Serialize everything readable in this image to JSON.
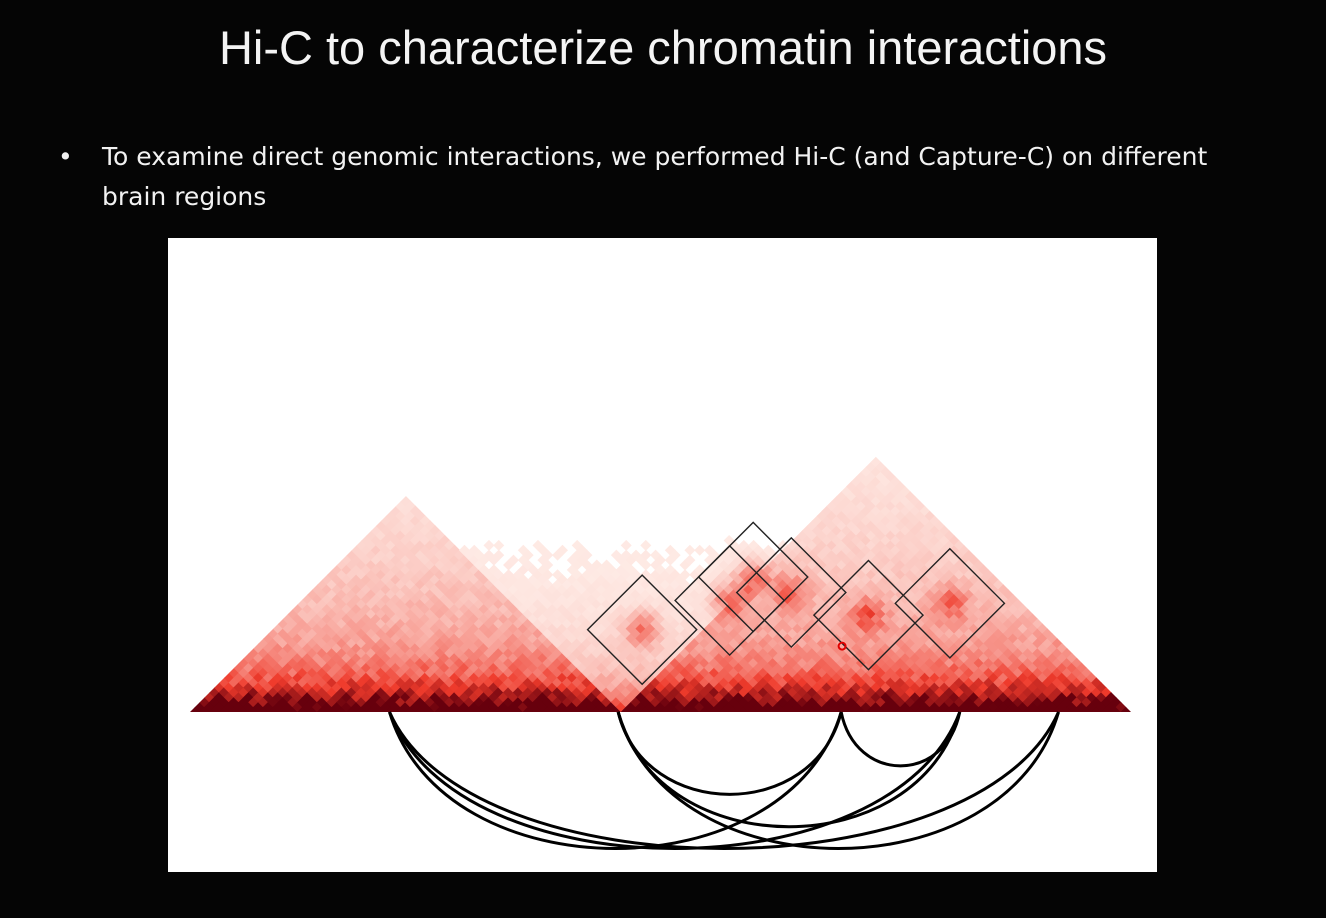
{
  "slide": {
    "title": "Hi-C to characterize chromatin interactions",
    "bullets": [
      {
        "marker": "•",
        "text": "To examine direct genomic interactions, we performed Hi-C (and Capture-C) on different brain regions"
      }
    ]
  },
  "figure": {
    "colors": {
      "background": "#050505",
      "heatmap_low": "#fff5f0",
      "heatmap_high": "#67000d",
      "box_stroke": "#222222",
      "arc_stroke": "#000000",
      "highlight_ring": "#e00000"
    },
    "genome_positions": {
      "start": 0,
      "end": 1,
      "anchors": [
        0.212,
        0.455,
        0.692,
        0.818,
        0.923
      ]
    },
    "domains": [
      {
        "start": 0.0,
        "end": 0.455,
        "strength": 0.55
      },
      {
        "start": 0.455,
        "end": 1.0,
        "strength": 0.45
      }
    ],
    "loops": [
      {
        "i": 0.393,
        "j": 0.568,
        "note": "box"
      },
      {
        "i": 0.455,
        "j": 0.692,
        "note": "box"
      },
      {
        "i": 0.455,
        "j": 0.742,
        "note": "box"
      },
      {
        "i": 0.512,
        "j": 0.766,
        "note": "box"
      },
      {
        "i": 0.618,
        "j": 0.824,
        "note": "box"
      },
      {
        "i": 0.692,
        "j": 0.923,
        "note": "box"
      }
    ],
    "highlight": {
      "i": 0.623,
      "j": 0.763
    },
    "arcs": [
      {
        "from": 0.212,
        "to": 0.692
      },
      {
        "from": 0.212,
        "to": 0.818
      },
      {
        "from": 0.212,
        "to": 0.923
      },
      {
        "from": 0.455,
        "to": 0.692
      },
      {
        "from": 0.455,
        "to": 0.818
      },
      {
        "from": 0.455,
        "to": 0.923
      },
      {
        "from": 0.692,
        "to": 0.818
      }
    ]
  }
}
